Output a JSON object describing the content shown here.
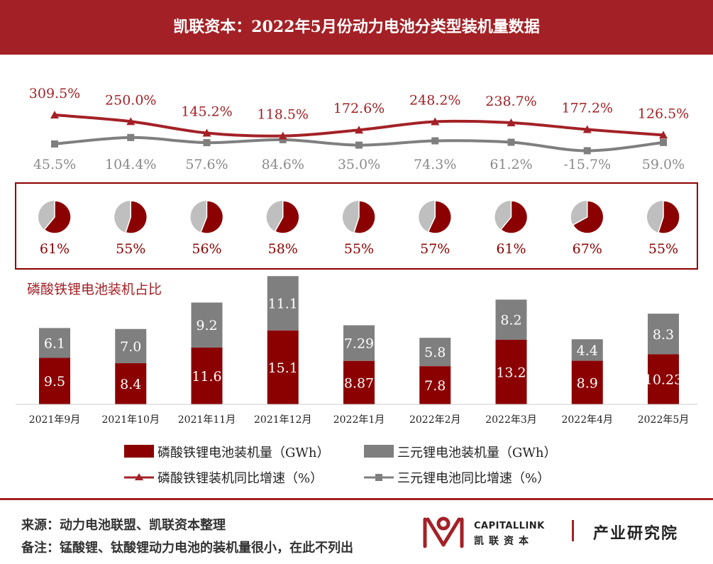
{
  "header": {
    "title": "凯联资本：2022年5月份动力电池分类型装机量数据"
  },
  "pie_section": {
    "label": "磷酸铁锂电池装机占比"
  },
  "chart_data": {
    "type": "bar",
    "title": "凯联资本：2022年5月份动力电池分类型装机量数据",
    "categories": [
      "2021年9月",
      "2021年10月",
      "2021年11月",
      "2021年12月",
      "2022年1月",
      "2022年2月",
      "2022年3月",
      "2022年4月",
      "2022年5月"
    ],
    "series": [
      {
        "name": "磷酸铁锂电池装机量（GWh）",
        "type": "stacked-bar",
        "color": "#8b0000",
        "values": [
          9.5,
          8.4,
          11.6,
          15.1,
          8.87,
          7.8,
          13.2,
          8.9,
          10.23
        ],
        "labels": [
          "9.5",
          "8.4",
          "11.6",
          "15.1",
          "8.87",
          "7.8",
          "13.2",
          "8.9",
          "10.23"
        ]
      },
      {
        "name": "三元锂电池装机量（GWh）",
        "type": "stacked-bar",
        "color": "#7f7f7f",
        "values": [
          6.1,
          7.0,
          9.2,
          11.1,
          7.29,
          5.8,
          8.2,
          4.4,
          8.3
        ],
        "labels": [
          "6.1",
          "7.0",
          "9.2",
          "11.1",
          "7.29",
          "5.8",
          "8.2",
          "4.4",
          "8.3"
        ]
      },
      {
        "name": "磷酸铁锂装机同比增速（%）",
        "type": "line",
        "color": "#a32126",
        "marker": "triangle",
        "values": [
          309.5,
          250.0,
          145.2,
          118.5,
          172.6,
          248.2,
          238.7,
          177.2,
          126.5
        ],
        "labels": [
          "309.5%",
          "250.0%",
          "145.2%",
          "118.5%",
          "172.6%",
          "248.2%",
          "238.7%",
          "177.2%",
          "126.5%"
        ]
      },
      {
        "name": "三元锂电池同比增速（%）",
        "type": "line",
        "color": "#7f7f7f",
        "marker": "square",
        "values": [
          45.5,
          104.4,
          57.6,
          84.6,
          35.0,
          74.3,
          61.2,
          -15.7,
          59.0
        ],
        "labels": [
          "45.5%",
          "104.4%",
          "57.6%",
          "84.6%",
          "35.0%",
          "74.3%",
          "61.2%",
          "-15.7%",
          "59.0%"
        ]
      }
    ],
    "pie_share": {
      "name": "磷酸铁锂电池装机占比",
      "values": [
        61,
        55,
        56,
        58,
        55,
        57,
        61,
        67,
        55
      ],
      "labels": [
        "61%",
        "55%",
        "56%",
        "58%",
        "55%",
        "57%",
        "61%",
        "67%",
        "55%"
      ],
      "color": "#8b0000",
      "rest_color": "#bfbfbf"
    },
    "legend_position": "bottom",
    "grid": false
  },
  "footer": {
    "source": "来源：动力电池联盟、凯联资本整理",
    "note": "备注：锰酸锂、钛酸锂动力电池的装机量很小，在此不列出",
    "logo_en": "CAPITALLINK",
    "logo_cn": "凯联资本",
    "institute": "产业研究院"
  }
}
